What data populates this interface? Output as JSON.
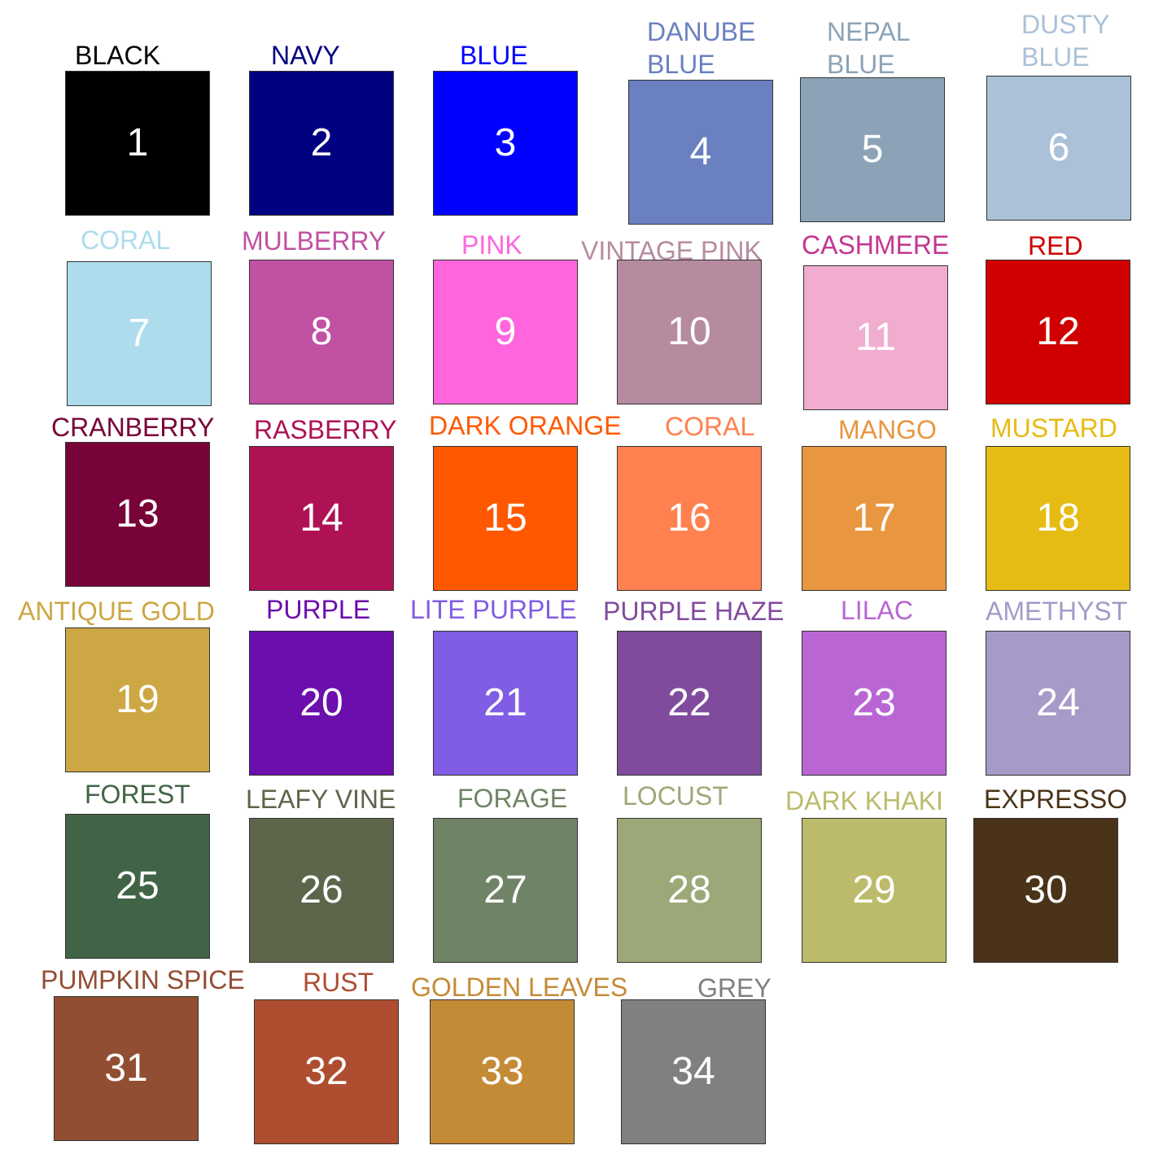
{
  "swatches": [
    {
      "number": "1",
      "name": "BLACK",
      "color": "#000000",
      "label_color": "#000000"
    },
    {
      "number": "2",
      "name": "NAVY",
      "color": "#000080",
      "label_color": "#000080"
    },
    {
      "number": "3",
      "name": "BLUE",
      "color": "#0000ff",
      "label_color": "#0000ff"
    },
    {
      "number": "4",
      "name": "DANUBE\nBLUE",
      "color": "#6a80c1",
      "label_color": "#6a80c1"
    },
    {
      "number": "5",
      "name": "NEPAL\nBLUE",
      "color": "#8ca3b7",
      "label_color": "#8ca3b7"
    },
    {
      "number": "6",
      "name": "DUSTY\nBLUE",
      "color": "#abc1d7",
      "label_color": "#abc1d7"
    },
    {
      "number": "7",
      "name": "CORAL",
      "color": "#addcec",
      "label_color": "#addcec"
    },
    {
      "number": "8",
      "name": "MULBERRY",
      "color": "#c151a2",
      "label_color": "#c151a2"
    },
    {
      "number": "9",
      "name": "PINK",
      "color": "#ff66dd",
      "label_color": "#ff66dd"
    },
    {
      "number": "10",
      "name": "VINTAGE PINK",
      "color": "#b78b9f",
      "label_color": "#b78b9f"
    },
    {
      "number": "11",
      "name": "CASHMERE",
      "color": "#f0add0",
      "label_color": "#c4358f"
    },
    {
      "number": "12",
      "name": "RED",
      "color": "#d00000",
      "label_color": "#d00000"
    },
    {
      "number": "13",
      "name": "CRANBERRY",
      "color": "#780338",
      "label_color": "#780338"
    },
    {
      "number": "14",
      "name": "RASBERRY",
      "color": "#ae1255",
      "label_color": "#ae1255"
    },
    {
      "number": "15",
      "name": "DARK ORANGE",
      "color": "#ff5800",
      "label_color": "#ff5800"
    },
    {
      "number": "16",
      "name": "CORAL",
      "color": "#ff8150",
      "label_color": "#ff8150"
    },
    {
      "number": "17",
      "name": "MANGO",
      "color": "#e8963f",
      "label_color": "#e8963f"
    },
    {
      "number": "18",
      "name": "MUSTARD",
      "color": "#e6bb13",
      "label_color": "#e6bb13"
    },
    {
      "number": "19",
      "name": "ANTIQUE GOLD",
      "color": "#cca743",
      "label_color": "#cca743"
    },
    {
      "number": "20",
      "name": "PURPLE",
      "color": "#6b0ead",
      "label_color": "#6b0ead"
    },
    {
      "number": "21",
      "name": "LITE PURPLE",
      "color": "#815de3",
      "label_color": "#815de3"
    },
    {
      "number": "22",
      "name": "PURPLE HAZE",
      "color": "#804b9d",
      "label_color": "#804b9d"
    },
    {
      "number": "23",
      "name": "LILAC",
      "color": "#b966d4",
      "label_color": "#b966d4"
    },
    {
      "number": "24",
      "name": "AMETHYST",
      "color": "#a69ac8",
      "label_color": "#a69ac8"
    },
    {
      "number": "25",
      "name": "FOREST",
      "color": "#426446",
      "label_color": "#426446"
    },
    {
      "number": "26",
      "name": "LEAFY VINE",
      "color": "#5d654b",
      "label_color": "#5d654b"
    },
    {
      "number": "27",
      "name": "FORAGE",
      "color": "#6f8466",
      "label_color": "#6f8466"
    },
    {
      "number": "28",
      "name": "LOCUST",
      "color": "#9da878",
      "label_color": "#9da878"
    },
    {
      "number": "29",
      "name": "DARK KHAKI",
      "color": "#bcbb6b",
      "label_color": "#bcbb6b"
    },
    {
      "number": "30",
      "name": "EXPRESSO",
      "color": "#4a3318",
      "label_color": "#4a3318"
    },
    {
      "number": "31",
      "name": "PUMPKIN SPICE",
      "color": "#924e33",
      "label_color": "#924e33"
    },
    {
      "number": "32",
      "name": "RUST",
      "color": "#ae4d30",
      "label_color": "#ae4d30"
    },
    {
      "number": "33",
      "name": "GOLDEN LEAVES",
      "color": "#c48b37",
      "label_color": "#c48b37"
    },
    {
      "number": "34",
      "name": "GREY",
      "color": "#808080",
      "label_color": "#808080"
    }
  ]
}
